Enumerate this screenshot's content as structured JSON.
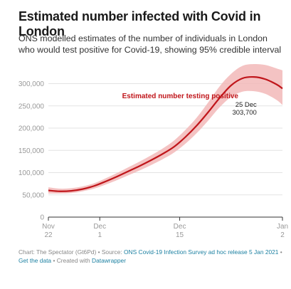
{
  "title": "Estimated number infected with Covid in London",
  "subtitle": "ONS modelled estimates of the number of individuals in London who would test positive for Covid-19, showing 95% credible interval",
  "colors": {
    "line": "#c0161b",
    "band": "#f2b8b8",
    "grid": "#e3e3e3",
    "link": "#1d81a2"
  },
  "footer": {
    "chart": "Chart: The Spectator (Gt6Pd)",
    "source_prefix": "Source:",
    "source_link": "ONS Covid-19 Infection Survey ad hoc release 5 Jan 2021",
    "get_data": "Get the data",
    "created_prefix": "Created with",
    "datawrapper": "Datawrapper"
  },
  "chart_data": {
    "type": "line",
    "title": "Estimated number infected with Covid in London",
    "ylim": [
      0,
      320000
    ],
    "yticks": [
      0,
      50000,
      100000,
      150000,
      200000,
      250000,
      300000
    ],
    "ytick_labels": [
      "0",
      "50,000",
      "100,000",
      "150,000",
      "200,000",
      "250,000",
      "300,000"
    ],
    "xlim": [
      "2020-11-22",
      "2021-01-02"
    ],
    "xticks": [
      {
        "date": "2020-11-22",
        "line1": "Nov",
        "line2": "22"
      },
      {
        "date": "2020-12-01",
        "line1": "Dec",
        "line2": "1"
      },
      {
        "date": "2020-12-15",
        "line1": "Dec",
        "line2": "15"
      },
      {
        "date": "2021-01-02",
        "line1": "Jan",
        "line2": "2"
      }
    ],
    "grid": true,
    "series": [
      {
        "x": [
          "2020-11-22",
          "2020-11-24",
          "2020-11-26",
          "2020-11-28",
          "2020-11-30",
          "2020-12-02",
          "2020-12-04",
          "2020-12-06",
          "2020-12-08",
          "2020-12-10",
          "2020-12-12",
          "2020-12-14",
          "2020-12-16",
          "2020-12-18",
          "2020-12-20",
          "2020-12-22",
          "2020-12-24",
          "2020-12-26",
          "2020-12-28",
          "2020-12-30",
          "2021-01-01",
          "2021-01-02"
        ],
        "values": [
          60000,
          58000,
          59000,
          63000,
          70000,
          80000,
          91000,
          103000,
          115000,
          128000,
          142000,
          158000,
          180000,
          206000,
          236000,
          268000,
          296000,
          312000,
          315000,
          310000,
          298000,
          289000
        ],
        "lower": [
          53000,
          53000,
          54000,
          58000,
          64000,
          73000,
          83000,
          94000,
          105000,
          117000,
          130000,
          145000,
          165000,
          189000,
          217000,
          247000,
          270000,
          282000,
          283000,
          277000,
          263000,
          252000
        ],
        "upper": [
          67000,
          64000,
          65000,
          69000,
          76000,
          87000,
          99000,
          112000,
          125000,
          139000,
          154000,
          172000,
          196000,
          224000,
          258000,
          294000,
          322000,
          340000,
          344000,
          342000,
          334000,
          330000
        ]
      }
    ],
    "annotation": {
      "label": "Estimated number testing positive",
      "point_date": "25 Dec",
      "point_value": "303,700"
    }
  }
}
